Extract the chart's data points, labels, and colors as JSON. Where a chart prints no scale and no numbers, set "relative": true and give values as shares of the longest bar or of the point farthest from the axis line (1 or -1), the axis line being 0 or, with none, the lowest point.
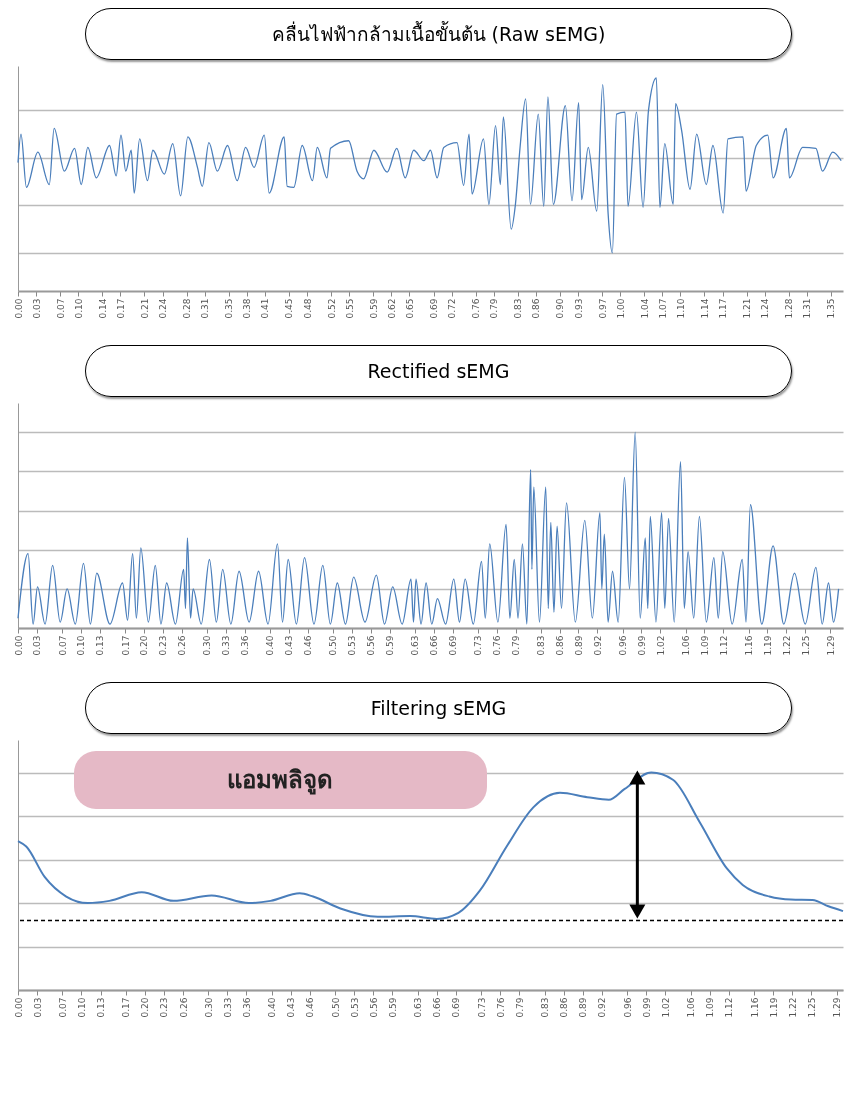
{
  "chart_data": [
    {
      "type": "line",
      "title": "คลื่นไฟฟ้ากล้ามเนื้อขั้นต้น (Raw sEMG)",
      "relative": true,
      "color": "#4a7ebb",
      "grid": "y",
      "xlim": [
        0,
        1.37
      ],
      "xticks": [
        {
          "value": 0,
          "label": "0.00"
        },
        0.03,
        0.07,
        {
          "value": 0.1,
          "label": "0.10"
        },
        0.14,
        0.17,
        0.21,
        0.24,
        0.28,
        0.31,
        0.35,
        0.38,
        0.41,
        0.45,
        0.48,
        0.52,
        0.55,
        0.59,
        0.62,
        0.65,
        0.69,
        0.72,
        0.76,
        0.79,
        0.83,
        0.86,
        {
          "value": 0.9,
          "label": "0.90"
        },
        0.93,
        0.97,
        {
          "value": 1,
          "label": "1.00"
        },
        1.04,
        1.07,
        {
          "value": 1.1,
          "label": "1.10"
        },
        1.14,
        1.17,
        1.21,
        1.24,
        1.28,
        1.31,
        1.35
      ],
      "x": [
        0,
        0.005,
        0.014,
        0.033,
        0.052,
        0.06,
        0.077,
        0.094,
        0.105,
        0.116,
        0.13,
        0.152,
        0.163,
        0.171,
        0.179,
        0.188,
        0.193,
        0.202,
        0.215,
        0.224,
        0.243,
        0.257,
        0.27,
        0.282,
        0.298,
        0.306,
        0.317,
        0.331,
        0.348,
        0.364,
        0.378,
        0.392,
        0.409,
        0.417,
        0.442,
        0.447,
        0.458,
        0.472,
        0.489,
        0.497,
        0.513,
        0.519,
        0.549,
        0.563,
        0.574,
        0.591,
        0.613,
        0.629,
        0.643,
        0.657,
        0.674,
        0.685,
        0.696,
        0.707,
        0.729,
        0.74,
        0.749,
        0.754,
        0.773,
        0.782,
        0.793,
        0.801,
        0.806,
        0.819,
        0.826,
        0.834,
        0.843,
        0.851,
        0.864,
        0.873,
        0.88,
        0.889,
        0.909,
        0.92,
        0.931,
        0.936,
        0.947,
        0.961,
        0.971,
        0.98,
        0.987,
        0.994,
        1.008,
        1.013,
        1.027,
        1.038,
        1.047,
        1.06,
        1.066,
        1.074,
        1.088,
        1.092,
        1.102,
        1.116,
        1.127,
        1.143,
        1.154,
        1.171,
        1.179,
        1.204,
        1.209,
        1.226,
        1.245,
        1.254,
        1.276,
        1.281,
        1.303,
        1.325,
        1.336,
        1.353,
        1.367
      ],
      "values": [
        -0.05,
        0.25,
        -0.31,
        0.06,
        -0.28,
        0.31,
        -0.14,
        0.1,
        -0.28,
        0.11,
        -0.21,
        0.13,
        -0.19,
        0.24,
        -0.14,
        0.08,
        -0.37,
        0.2,
        -0.24,
        0.08,
        -0.17,
        0.15,
        -0.4,
        0.22,
        -0.1,
        -0.3,
        0.16,
        -0.14,
        0.13,
        -0.24,
        0.11,
        -0.1,
        0.24,
        -0.37,
        0.22,
        -0.3,
        -0.31,
        0.13,
        -0.24,
        0.11,
        -0.21,
        0.1,
        0.18,
        -0.14,
        -0.22,
        0.08,
        -0.15,
        0.1,
        -0.21,
        0.08,
        -0.03,
        0.08,
        -0.21,
        0.11,
        0.16,
        -0.29,
        0.25,
        -0.38,
        0.2,
        -0.49,
        0.34,
        -0.28,
        0.43,
        -0.75,
        -0.49,
        0.13,
        0.62,
        -0.49,
        0.46,
        -0.51,
        0.64,
        -0.49,
        0.55,
        -0.45,
        0.58,
        -0.44,
        0.11,
        -0.56,
        0.77,
        -0.59,
        -1,
        0.46,
        0.48,
        -0.51,
        0.48,
        -0.52,
        0.5,
        0.84,
        -0.52,
        0.15,
        -0.49,
        0.57,
        0.29,
        -0.33,
        0.25,
        -0.28,
        0.13,
        -0.58,
        0.2,
        0.22,
        -0.35,
        0.13,
        0.24,
        -0.21,
        0.31,
        -0.21,
        0.11,
        0.1,
        -0.14,
        0.06,
        -0.03
      ]
    },
    {
      "type": "line",
      "title": "Rectified sEMG",
      "relative": true,
      "color": "#4a7ebb",
      "grid": "y",
      "xlim": [
        0,
        1.31
      ],
      "xticks": [
        {
          "value": 0,
          "label": "0.00"
        },
        0.03,
        0.07,
        {
          "value": 0.1,
          "label": "0.10"
        },
        0.13,
        0.17,
        {
          "value": 0.2,
          "label": "0.20"
        },
        0.23,
        0.26,
        {
          "value": 0.3,
          "label": "0.30"
        },
        0.33,
        0.36,
        {
          "value": 0.4,
          "label": "0.40"
        },
        0.43,
        0.46,
        {
          "value": 0.5,
          "label": "0.50"
        },
        0.53,
        0.56,
        0.59,
        0.63,
        0.66,
        0.69,
        0.73,
        0.76,
        0.79,
        0.83,
        0.86,
        0.89,
        0.92,
        0.96,
        0.99,
        1.02,
        1.06,
        1.09,
        1.12,
        1.16,
        1.19,
        1.22,
        1.25,
        1.29
      ],
      "x": [
        0,
        0.016,
        0.024,
        0.031,
        0.043,
        0.055,
        0.067,
        0.078,
        0.091,
        0.104,
        0.115,
        0.125,
        0.146,
        0.166,
        0.174,
        0.182,
        0.188,
        0.195,
        0.207,
        0.218,
        0.227,
        0.236,
        0.25,
        0.263,
        0.266,
        0.269,
        0.274,
        0.278,
        0.291,
        0.304,
        0.315,
        0.325,
        0.338,
        0.351,
        0.367,
        0.382,
        0.397,
        0.412,
        0.42,
        0.429,
        0.442,
        0.455,
        0.47,
        0.484,
        0.496,
        0.507,
        0.52,
        0.533,
        0.551,
        0.569,
        0.582,
        0.595,
        0.61,
        0.624,
        0.628,
        0.632,
        0.64,
        0.648,
        0.657,
        0.666,
        0.679,
        0.692,
        0.701,
        0.71,
        0.723,
        0.736,
        0.742,
        0.749,
        0.762,
        0.775,
        0.781,
        0.788,
        0.794,
        0.801,
        0.808,
        0.814,
        0.816,
        0.819,
        0.828,
        0.838,
        0.842,
        0.846,
        0.851,
        0.856,
        0.863,
        0.871,
        0.885,
        0.9,
        0.912,
        0.924,
        0.927,
        0.931,
        0.937,
        0.944,
        0.953,
        0.963,
        0.971,
        0.98,
        0.988,
        0.996,
        1,
        1.004,
        1.013,
        1.022,
        1.027,
        1.033,
        1.042,
        1.052,
        1.058,
        1.064,
        1.073,
        1.082,
        1.093,
        1.105,
        1.112,
        1.119,
        1.134,
        1.15,
        1.156,
        1.163,
        1.181,
        1.199,
        1.216,
        1.233,
        1.25,
        1.267,
        1.277,
        1.287,
        1.295,
        1.303
      ],
      "values": [
        0.05,
        0.38,
        0.02,
        0.21,
        0.02,
        0.32,
        0.03,
        0.2,
        0.02,
        0.33,
        0.02,
        0.28,
        0.02,
        0.23,
        0.04,
        0.38,
        0.05,
        0.41,
        0.03,
        0.32,
        0.02,
        0.23,
        0.02,
        0.3,
        0.1,
        0.46,
        0.05,
        0.2,
        0.02,
        0.35,
        0.03,
        0.3,
        0.02,
        0.29,
        0.03,
        0.29,
        0.02,
        0.43,
        0.03,
        0.35,
        0.02,
        0.36,
        0.02,
        0.32,
        0.02,
        0.23,
        0.02,
        0.26,
        0.03,
        0.27,
        0.02,
        0.21,
        0.02,
        0.25,
        0.03,
        0.25,
        0.02,
        0.23,
        0.02,
        0.15,
        0.02,
        0.25,
        0.03,
        0.25,
        0.02,
        0.34,
        0.05,
        0.43,
        0.03,
        0.53,
        0.05,
        0.35,
        0.05,
        0.43,
        0.02,
        0.81,
        0.3,
        0.72,
        0.03,
        0.72,
        0.1,
        0.54,
        0.08,
        0.52,
        0.1,
        0.64,
        0.03,
        0.55,
        0.05,
        0.59,
        0.2,
        0.48,
        0.03,
        0.29,
        0.03,
        0.77,
        0.2,
        1,
        0.05,
        0.46,
        0.1,
        0.57,
        0.03,
        0.59,
        0.1,
        0.56,
        0.03,
        0.85,
        0.1,
        0.39,
        0.05,
        0.57,
        0.03,
        0.36,
        0.05,
        0.39,
        0.02,
        0.35,
        0.03,
        0.63,
        0.02,
        0.42,
        0.02,
        0.28,
        0.02,
        0.31,
        0.02,
        0.23,
        0.03,
        0.2
      ]
    },
    {
      "type": "line",
      "title": "Filtering sEMG",
      "relative": true,
      "color": "#4a7ebb",
      "grid": "y",
      "xlim": [
        0,
        1.3
      ],
      "xticks": [
        {
          "value": 0,
          "label": "0.00"
        },
        0.03,
        0.07,
        {
          "value": 0.1,
          "label": "0.10"
        },
        0.13,
        0.17,
        {
          "value": 0.2,
          "label": "0.20"
        },
        0.23,
        0.26,
        {
          "value": 0.3,
          "label": "0.30"
        },
        0.33,
        0.36,
        {
          "value": 0.4,
          "label": "0.40"
        },
        0.43,
        0.46,
        {
          "value": 0.5,
          "label": "0.50"
        },
        0.53,
        0.56,
        0.59,
        0.63,
        0.66,
        0.69,
        0.73,
        0.76,
        0.79,
        0.83,
        0.86,
        0.89,
        0.92,
        0.96,
        0.99,
        1.02,
        1.06,
        1.09,
        1.12,
        1.16,
        1.19,
        1.22,
        1.25,
        1.29
      ],
      "x": [
        0,
        0.013,
        0.042,
        0.076,
        0.11,
        0.144,
        0.195,
        0.245,
        0.305,
        0.364,
        0.398,
        0.444,
        0.465,
        0.508,
        0.567,
        0.618,
        0.66,
        0.694,
        0.728,
        0.77,
        0.812,
        0.854,
        0.897,
        0.931,
        0.956,
        0.998,
        1.032,
        1.074,
        1.117,
        1.142,
        1.184,
        1.218,
        1.252,
        1.277,
        1.3
      ],
      "values": [
        0.685,
        0.66,
        0.52,
        0.43,
        0.4,
        0.41,
        0.45,
        0.41,
        0.435,
        0.4,
        0.41,
        0.445,
        0.43,
        0.375,
        0.337,
        0.34,
        0.327,
        0.355,
        0.458,
        0.66,
        0.84,
        0.907,
        0.887,
        0.875,
        0.925,
        1,
        0.967,
        0.773,
        0.559,
        0.483,
        0.43,
        0.416,
        0.414,
        0.385,
        0.363
      ],
      "ref_lines": [
        {
          "axis": "y",
          "value": 0.32,
          "color": "#000000",
          "line_style": "dashed"
        }
      ],
      "annotations": [
        "แอมพลิจูด"
      ]
    }
  ]
}
